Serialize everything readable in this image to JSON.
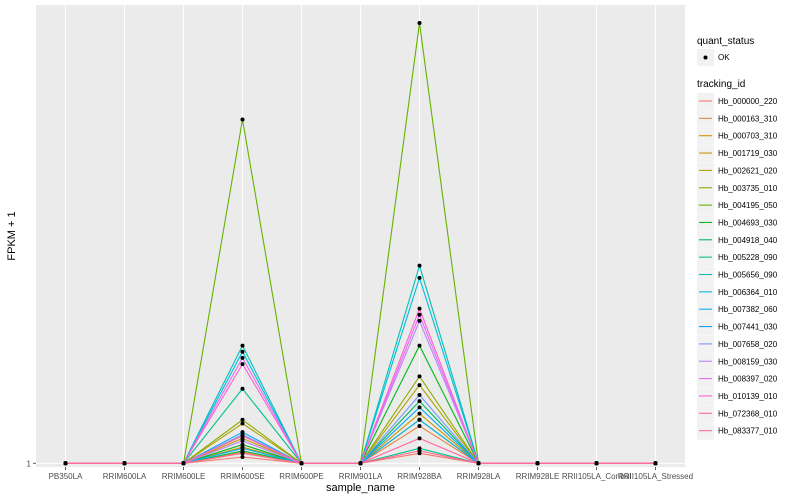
{
  "chart_data": {
    "type": "line",
    "title": "",
    "xlabel": "sample_name",
    "ylabel": "FPKM + 1",
    "y_scale": "log",
    "ylim": [
      0.9997,
      1.0375
    ],
    "y_ticks": [
      1
    ],
    "y_tick_labels": [
      "1"
    ],
    "grid": true,
    "legend_position": "right",
    "categories": [
      "PB350LA",
      "RRIM600LA",
      "RRIM600LE",
      "RRIM600SE",
      "RRIM600PE",
      "RRIM901LA",
      "RRIM928BA",
      "RRIM928LA",
      "RRIM928LE",
      "RRII105LA_Control",
      "RRII105LA_Stressed"
    ],
    "legend_shape": {
      "title": "quant_status",
      "entries": [
        "OK"
      ]
    },
    "legend_color": {
      "title": "tracking_id"
    },
    "series": [
      {
        "name": "Hb_000000_220",
        "color": "#F8766D",
        "values": [
          1,
          1,
          1,
          1.0005,
          1,
          1,
          1.0008,
          1,
          1,
          1,
          1
        ]
      },
      {
        "name": "Hb_000163_310",
        "color": "#EC8239",
        "values": [
          1,
          1,
          1,
          1.0009,
          1,
          1,
          1.003,
          1,
          1,
          1,
          1
        ]
      },
      {
        "name": "Hb_000703_310",
        "color": "#DB8E00",
        "values": [
          1,
          1,
          1,
          1.0013,
          1,
          1,
          1.0035,
          1,
          1,
          1,
          1
        ]
      },
      {
        "name": "Hb_001719_030",
        "color": "#C79800",
        "values": [
          1,
          1,
          1,
          1.002,
          1,
          1,
          1.004,
          1,
          1,
          1,
          1
        ]
      },
      {
        "name": "Hb_002621_020",
        "color": "#AEA200",
        "values": [
          1,
          1,
          1,
          1.0032,
          1,
          1,
          1.0063,
          1,
          1,
          1,
          1
        ]
      },
      {
        "name": "Hb_003735_010",
        "color": "#8FAA00",
        "values": [
          1,
          1,
          1,
          1.0035,
          1,
          1,
          1.007,
          1,
          1,
          1,
          1
        ]
      },
      {
        "name": "Hb_004195_050",
        "color": "#64B200",
        "values": [
          1,
          1,
          1,
          1.028,
          1,
          1,
          1.036,
          1,
          1,
          1,
          1
        ]
      },
      {
        "name": "Hb_004693_030",
        "color": "#00B81B",
        "values": [
          1,
          1,
          1,
          1.0015,
          1,
          1,
          1.0095,
          1,
          1,
          1,
          1
        ]
      },
      {
        "name": "Hb_004918_040",
        "color": "#00BD5C",
        "values": [
          1,
          1,
          1,
          1.001,
          1,
          1,
          1.005,
          1,
          1,
          1,
          1
        ]
      },
      {
        "name": "Hb_005228_090",
        "color": "#00C08E",
        "values": [
          1,
          1,
          1,
          1.006,
          1,
          1,
          1.0012,
          1,
          1,
          1,
          1
        ]
      },
      {
        "name": "Hb_005656_090",
        "color": "#00C1B7",
        "values": [
          1,
          1,
          1,
          1.0095,
          1,
          1,
          1.016,
          1,
          1,
          1,
          1
        ]
      },
      {
        "name": "Hb_006364_010",
        "color": "#00BDDC",
        "values": [
          1,
          1,
          1,
          1.009,
          1,
          1,
          1.015,
          1,
          1,
          1,
          1
        ]
      },
      {
        "name": "Hb_007382_060",
        "color": "#00B4EF",
        "values": [
          1,
          1,
          1,
          1.0012,
          1,
          1,
          1.0035,
          1,
          1,
          1,
          1
        ]
      },
      {
        "name": "Hb_007441_030",
        "color": "#00A5FF",
        "values": [
          1,
          1,
          1,
          1.0025,
          1,
          1,
          1.0045,
          1,
          1,
          1,
          1
        ]
      },
      {
        "name": "Hb_007658_020",
        "color": "#7997FF",
        "values": [
          1,
          1,
          1,
          1.0023,
          1,
          1,
          1.0055,
          1,
          1,
          1,
          1
        ]
      },
      {
        "name": "Hb_008159_030",
        "color": "#B983FF",
        "values": [
          1,
          1,
          1,
          1.0018,
          1,
          1,
          1.0115,
          1,
          1,
          1,
          1
        ]
      },
      {
        "name": "Hb_008397_020",
        "color": "#E76BF3",
        "values": [
          1,
          1,
          1,
          1.0085,
          1,
          1,
          1.012,
          1,
          1,
          1,
          1
        ]
      },
      {
        "name": "Hb_010139_010",
        "color": "#FD61D1",
        "values": [
          1,
          1,
          1,
          1.008,
          1,
          1,
          1.0125,
          1,
          1,
          1,
          1
        ]
      },
      {
        "name": "Hb_072368_010",
        "color": "#FF67A4",
        "values": [
          1,
          1,
          1,
          1.0022,
          1,
          1,
          1.002,
          1,
          1,
          1,
          1
        ]
      },
      {
        "name": "Hb_083377_010",
        "color": "#FF6C91",
        "values": [
          1,
          1,
          1,
          1.0008,
          1,
          1,
          1.001,
          1,
          1,
          1,
          1
        ]
      }
    ]
  }
}
